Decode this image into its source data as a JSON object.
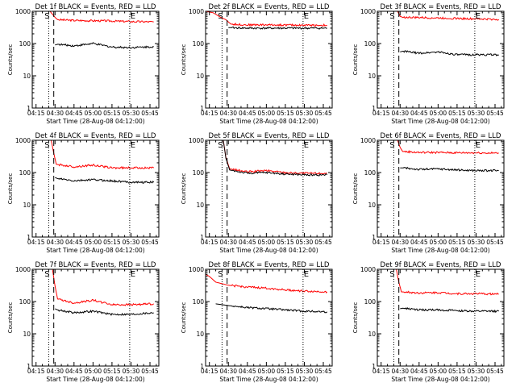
{
  "chart_data": [
    {
      "type": "line",
      "title": "Det 1f BLACK = Events, RED = LLD",
      "ylabel": "Counts/sec",
      "xlabel": "Start Time (28-Aug-08 04:12:00)",
      "xticks": [
        "04:15",
        "04:30",
        "04:45",
        "05:00",
        "05:15",
        "05:30",
        "05:45"
      ],
      "xlim": [
        "04:12",
        "05:52"
      ],
      "yscale": "log",
      "ylim": [
        1,
        1000
      ],
      "yticks": [
        "1",
        "10",
        "100",
        "1000"
      ],
      "markers": [
        "S",
        "E"
      ],
      "series": [
        {
          "color": "#ff0000",
          "x": [
            "04:12",
            "04:26",
            "04:30",
            "04:32",
            "04:45",
            "05:00",
            "05:15",
            "05:30",
            "05:48"
          ],
          "values": [
            1000,
            1000,
            650,
            550,
            520,
            510,
            500,
            480,
            470
          ]
        },
        {
          "color": "#000000",
          "x": [
            "04:30",
            "04:32",
            "04:45",
            "05:00",
            "05:15",
            "05:30",
            "05:48"
          ],
          "values": [
            90,
            95,
            85,
            100,
            78,
            75,
            80
          ]
        }
      ]
    },
    {
      "type": "line",
      "title": "Det 2f BLACK = Events, RED = LLD",
      "ylabel": "Counts/sec",
      "xlabel": "Start Time (28-Aug-08 04:12:00)",
      "xticks": [
        "04:15",
        "04:30",
        "04:45",
        "05:00",
        "05:15",
        "05:30",
        "05:45"
      ],
      "xlim": [
        "04:12",
        "05:52"
      ],
      "yscale": "log",
      "ylim": [
        1,
        1000
      ],
      "yticks": [
        "1",
        "10",
        "100",
        "1000"
      ],
      "markers": [
        "S",
        "E"
      ],
      "series": [
        {
          "color": "#ff0000",
          "x": [
            "04:12",
            "04:18",
            "04:24",
            "04:28",
            "04:32",
            "04:45",
            "05:00",
            "05:15",
            "05:30",
            "05:48"
          ],
          "values": [
            1000,
            900,
            650,
            550,
            400,
            380,
            380,
            375,
            370,
            370
          ]
        },
        {
          "color": "#000000",
          "x": [
            "04:30",
            "04:32",
            "04:45",
            "05:00",
            "05:15",
            "05:30",
            "05:48"
          ],
          "values": [
            310,
            310,
            300,
            300,
            300,
            300,
            300
          ]
        }
      ]
    },
    {
      "type": "line",
      "title": "Det 3f BLACK = Events, RED = LLD",
      "ylabel": "Counts/sec",
      "xlabel": "Start Time (28-Aug-08 04:12:00)",
      "xticks": [
        "04:15",
        "04:30",
        "04:45",
        "05:00",
        "05:15",
        "05:30",
        "05:45"
      ],
      "xlim": [
        "04:12",
        "05:52"
      ],
      "yscale": "log",
      "ylim": [
        1,
        1000
      ],
      "yticks": [
        "1",
        "10",
        "100",
        "1000"
      ],
      "markers": [
        "S",
        "E"
      ],
      "series": [
        {
          "color": "#ff0000",
          "x": [
            "04:12",
            "04:28",
            "04:30",
            "04:32",
            "04:45",
            "05:00",
            "05:15",
            "05:30",
            "05:48"
          ],
          "values": [
            1000,
            1000,
            700,
            650,
            640,
            620,
            600,
            580,
            560
          ]
        },
        {
          "color": "#000000",
          "x": [
            "04:30",
            "04:32",
            "04:45",
            "05:00",
            "05:15",
            "05:30",
            "05:48"
          ],
          "values": [
            55,
            58,
            50,
            55,
            45,
            45,
            45
          ]
        }
      ]
    },
    {
      "type": "line",
      "title": "Det 4f BLACK = Events, RED = LLD",
      "ylabel": "Counts/sec",
      "xlabel": "Start Time (28-Aug-08 04:12:00)",
      "xticks": [
        "04:15",
        "04:30",
        "04:45",
        "05:00",
        "05:15",
        "05:30",
        "05:45"
      ],
      "xlim": [
        "04:12",
        "05:52"
      ],
      "yscale": "log",
      "ylim": [
        1,
        1000
      ],
      "yticks": [
        "1",
        "10",
        "100",
        "1000"
      ],
      "markers": [
        "S",
        "E"
      ],
      "series": [
        {
          "color": "#ff0000",
          "x": [
            "04:12",
            "04:27",
            "04:29",
            "04:31",
            "04:45",
            "05:00",
            "05:15",
            "05:30",
            "05:48"
          ],
          "values": [
            1000,
            1000,
            400,
            180,
            150,
            170,
            140,
            140,
            140
          ]
        },
        {
          "color": "#000000",
          "x": [
            "04:30",
            "04:32",
            "04:45",
            "05:00",
            "05:15",
            "05:30",
            "05:48"
          ],
          "values": [
            70,
            65,
            55,
            60,
            55,
            50,
            50
          ]
        }
      ]
    },
    {
      "type": "line",
      "title": "Det 5f BLACK = Events, RED = LLD",
      "ylabel": "Counts/sec",
      "xlabel": "Start Time (28-Aug-08 04:12:00)",
      "xticks": [
        "04:15",
        "04:30",
        "04:45",
        "05:00",
        "05:15",
        "05:30",
        "05:45"
      ],
      "xlim": [
        "04:12",
        "05:52"
      ],
      "yscale": "log",
      "ylim": [
        1,
        1000
      ],
      "yticks": [
        "1",
        "10",
        "100",
        "1000"
      ],
      "markers": [
        "S",
        "E"
      ],
      "series": [
        {
          "color": "#ff0000",
          "x": [
            "04:12",
            "04:26",
            "04:28",
            "04:31",
            "04:45",
            "05:00",
            "05:15",
            "05:30",
            "05:48"
          ],
          "values": [
            1000,
            1000,
            300,
            130,
            105,
            115,
            100,
            95,
            95
          ]
        },
        {
          "color": "#000000",
          "x": [
            "04:12",
            "04:26",
            "04:28",
            "04:31",
            "04:45",
            "05:00",
            "05:15",
            "05:30",
            "05:48"
          ],
          "values": [
            1000,
            1000,
            280,
            120,
            95,
            100,
            90,
            85,
            85
          ]
        }
      ]
    },
    {
      "type": "line",
      "title": "Det 6f BLACK = Events, RED = LLD",
      "ylabel": "Counts/sec",
      "xlabel": "Start Time (28-Aug-08 04:12:00)",
      "xticks": [
        "04:15",
        "04:30",
        "04:45",
        "05:00",
        "05:15",
        "05:30",
        "05:45"
      ],
      "xlim": [
        "04:12",
        "05:52"
      ],
      "yscale": "log",
      "ylim": [
        1,
        1000
      ],
      "yticks": [
        "1",
        "10",
        "100",
        "1000"
      ],
      "markers": [
        "S",
        "E"
      ],
      "series": [
        {
          "color": "#ff0000",
          "x": [
            "04:12",
            "04:28",
            "04:30",
            "04:32",
            "04:45",
            "05:00",
            "05:15",
            "05:30",
            "05:48"
          ],
          "values": [
            1000,
            1000,
            600,
            450,
            420,
            420,
            410,
            410,
            400
          ]
        },
        {
          "color": "#000000",
          "x": [
            "04:30",
            "04:32",
            "04:45",
            "05:00",
            "05:15",
            "05:30",
            "05:48"
          ],
          "values": [
            140,
            140,
            125,
            130,
            120,
            115,
            115
          ]
        }
      ]
    },
    {
      "type": "line",
      "title": "Det 7f BLACK = Events, RED = LLD",
      "ylabel": "Counts/sec",
      "xlabel": "Start Time (28-Aug-08 04:12:00)",
      "xticks": [
        "04:15",
        "04:30",
        "04:45",
        "05:00",
        "05:15",
        "05:30",
        "05:45"
      ],
      "xlim": [
        "04:12",
        "05:52"
      ],
      "yscale": "log",
      "ylim": [
        1,
        1000
      ],
      "yticks": [
        "1",
        "10",
        "100",
        "1000"
      ],
      "markers": [
        "S",
        "E"
      ],
      "series": [
        {
          "color": "#ff0000",
          "x": [
            "04:12",
            "04:28",
            "04:30",
            "04:32",
            "04:45",
            "05:00",
            "05:15",
            "05:30",
            "05:48"
          ],
          "values": [
            1000,
            1000,
            300,
            120,
            90,
            110,
            80,
            80,
            85
          ]
        },
        {
          "color": "#000000",
          "x": [
            "04:30",
            "04:32",
            "04:45",
            "05:00",
            "05:15",
            "05:30",
            "05:48"
          ],
          "values": [
            60,
            55,
            45,
            50,
            40,
            40,
            45
          ]
        }
      ]
    },
    {
      "type": "line",
      "title": "Det 8f BLACK = Events, RED = LLD",
      "ylabel": "Counts/sec",
      "xlabel": "Start Time (28-Aug-08 04:12:00)",
      "xticks": [
        "04:15",
        "04:30",
        "04:45",
        "05:00",
        "05:15",
        "05:30",
        "05:45"
      ],
      "xlim": [
        "04:12",
        "05:52"
      ],
      "yscale": "log",
      "ylim": [
        1,
        1000
      ],
      "yticks": [
        "1",
        "10",
        "100",
        "1000"
      ],
      "markers": [
        "S",
        "E"
      ],
      "series": [
        {
          "color": "#ff0000",
          "x": [
            "04:12",
            "04:15",
            "04:20",
            "04:30",
            "04:45",
            "05:00",
            "05:15",
            "05:30",
            "05:48"
          ],
          "values": [
            700,
            600,
            400,
            320,
            280,
            260,
            230,
            210,
            200
          ]
        },
        {
          "color": "#000000",
          "x": [
            "04:20",
            "04:30",
            "04:45",
            "05:00",
            "05:15",
            "05:30",
            "05:48"
          ],
          "values": [
            85,
            75,
            65,
            60,
            55,
            50,
            48
          ]
        }
      ]
    },
    {
      "type": "line",
      "title": "Det 9f BLACK = Events, RED = LLD",
      "ylabel": "Counts/sec",
      "xlabel": "Start Time (28-Aug-08 04:12:00)",
      "xticks": [
        "04:15",
        "04:30",
        "04:45",
        "05:00",
        "05:15",
        "05:30",
        "05:45"
      ],
      "xlim": [
        "04:12",
        "05:52"
      ],
      "yscale": "log",
      "ylim": [
        1,
        1000
      ],
      "yticks": [
        "1",
        "10",
        "100",
        "1000"
      ],
      "markers": [
        "S",
        "E"
      ],
      "series": [
        {
          "color": "#ff0000",
          "x": [
            "04:12",
            "04:27",
            "04:29",
            "04:31",
            "04:45",
            "05:00",
            "05:15",
            "05:30",
            "05:48"
          ],
          "values": [
            1000,
            1000,
            400,
            200,
            185,
            190,
            175,
            175,
            170
          ]
        },
        {
          "color": "#000000",
          "x": [
            "04:30",
            "04:32",
            "04:45",
            "05:00",
            "05:15",
            "05:30",
            "05:48"
          ],
          "values": [
            60,
            62,
            55,
            55,
            52,
            50,
            50
          ]
        }
      ]
    }
  ]
}
